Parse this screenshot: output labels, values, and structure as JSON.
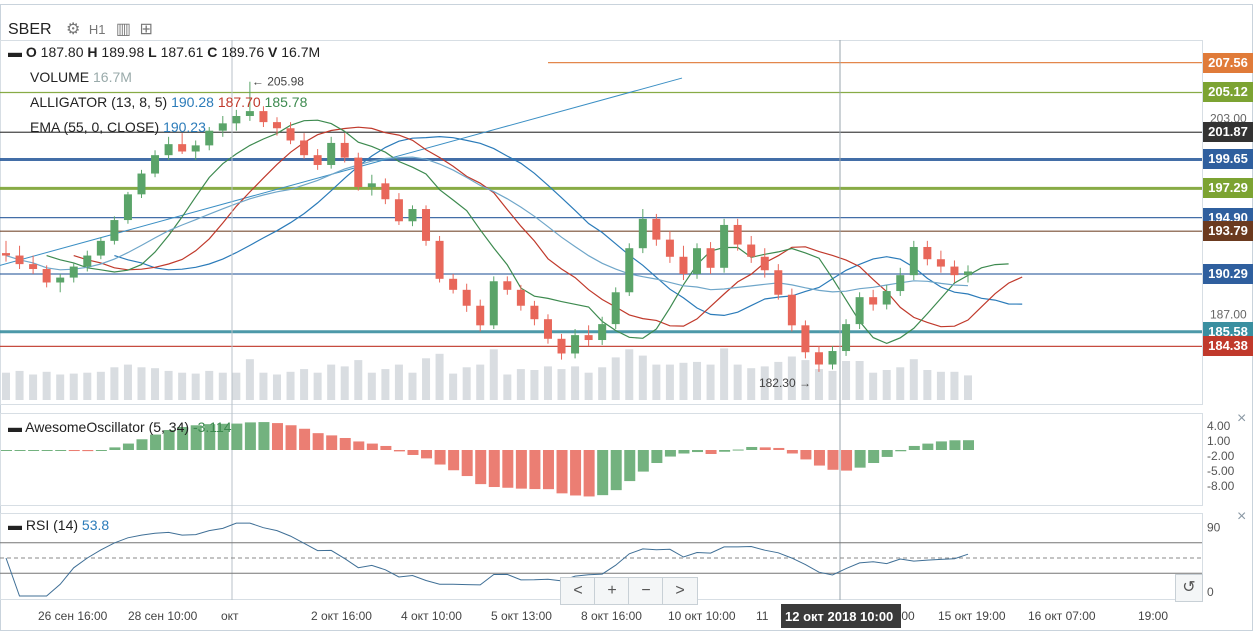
{
  "symbol": "SBER",
  "timeframe": "H1",
  "ohlc": {
    "o_label": "O",
    "o": "187.80",
    "h_label": "H",
    "h": "189.98",
    "l_label": "L",
    "l": "187.61",
    "c_label": "C",
    "c": "189.76",
    "v_label": "V",
    "v": "16.7M"
  },
  "indicators": {
    "volume": {
      "label": "VOLUME",
      "value": "16.7M"
    },
    "alligator": {
      "label": "ALLIGATOR (13, 8, 5)",
      "jaw": "190.28",
      "teeth": "187.70",
      "lips": "185.78"
    },
    "ema": {
      "label": "EMA (55, 0, CLOSE)",
      "value": "190.23"
    },
    "ao": {
      "label": "AwesomeOscillator (5, 34)",
      "value": "-3.114"
    },
    "rsi": {
      "label": "RSI (14)",
      "value": "53.8"
    }
  },
  "annotations": {
    "high_marker": "← 205.98",
    "low_marker": "182.30 →"
  },
  "price_tags": [
    {
      "value": "207.56",
      "color": "#e07b39"
    },
    {
      "value": "205.12",
      "color": "#7ca332"
    },
    {
      "value": "201.87",
      "color": "#333333"
    },
    {
      "value": "199.65",
      "color": "#2f5f9e"
    },
    {
      "value": "197.29",
      "color": "#7ca332"
    },
    {
      "value": "194.90",
      "color": "#2f5f9e"
    },
    {
      "value": "193.79",
      "color": "#6b3a1f"
    },
    {
      "value": "190.29",
      "color": "#2f5f9e"
    },
    {
      "value": "185.58",
      "color": "#3a8fa0"
    },
    {
      "value": "184.38",
      "color": "#c0392b"
    }
  ],
  "price_axis_ticks": [
    "203.00",
    "187.00"
  ],
  "ao_axis_ticks": [
    "4.00",
    "1.00",
    "-2.00",
    "-5.00",
    "-8.00"
  ],
  "rsi_axis_ticks": [
    "90",
    "0"
  ],
  "x_axis_ticks": [
    "26 сен 16:00",
    "28 сен 10:00",
    "окт",
    "2 окт 16:00",
    "4 окт 10:00",
    "5 окт 13:00",
    "8 окт 16:00",
    "10 окт 10:00",
    "11",
    ":00",
    "15 окт 19:00",
    "16 окт 07:00",
    "19:00"
  ],
  "crosshair_label": "12 окт 2018 10:00",
  "controls": {
    "prev": "<",
    "zoom_in": "+",
    "zoom_out": "−",
    "next": ">",
    "reset": "↺",
    "close": "×"
  },
  "colors": {
    "up": "#5aa469",
    "down": "#e8675a",
    "jaw": "#2b7bb9",
    "teeth": "#c0392b",
    "lips": "#3d8a4f"
  },
  "chart_data": {
    "type": "candlestick",
    "title": "",
    "y_range": [
      180,
      209
    ],
    "rsi_levels": [
      70,
      30
    ],
    "candles": [
      [
        192.0,
        193.0,
        191.3,
        191.8
      ],
      [
        191.8,
        192.6,
        190.7,
        191.1
      ],
      [
        191.1,
        191.8,
        190.3,
        190.7
      ],
      [
        190.7,
        191.0,
        189.2,
        189.6
      ],
      [
        189.6,
        190.3,
        188.8,
        190.0
      ],
      [
        190.0,
        191.2,
        189.6,
        190.9
      ],
      [
        190.9,
        192.2,
        190.5,
        191.8
      ],
      [
        191.8,
        193.3,
        191.5,
        193.0
      ],
      [
        193.0,
        195.0,
        192.7,
        194.7
      ],
      [
        194.7,
        197.0,
        194.4,
        196.8
      ],
      [
        196.8,
        198.8,
        196.5,
        198.5
      ],
      [
        198.5,
        200.4,
        198.2,
        200.0
      ],
      [
        200.0,
        201.5,
        199.6,
        200.9
      ],
      [
        200.9,
        201.8,
        200.1,
        200.3
      ],
      [
        200.3,
        201.2,
        199.6,
        200.8
      ],
      [
        200.8,
        202.3,
        200.4,
        202.0
      ],
      [
        202.0,
        203.2,
        201.5,
        202.6
      ],
      [
        202.6,
        203.7,
        202.0,
        203.2
      ],
      [
        203.2,
        206.0,
        202.8,
        203.6
      ],
      [
        203.6,
        204.0,
        202.3,
        202.7
      ],
      [
        202.7,
        203.1,
        201.6,
        202.2
      ],
      [
        202.2,
        202.7,
        200.9,
        201.2
      ],
      [
        201.2,
        201.8,
        199.7,
        200.0
      ],
      [
        200.0,
        200.5,
        198.8,
        199.2
      ],
      [
        199.2,
        201.5,
        198.9,
        201.0
      ],
      [
        201.0,
        201.8,
        199.4,
        199.8
      ],
      [
        199.8,
        200.2,
        197.1,
        197.4
      ],
      [
        197.4,
        198.4,
        196.7,
        197.7
      ],
      [
        197.7,
        198.1,
        196.0,
        196.4
      ],
      [
        196.4,
        196.9,
        194.3,
        194.6
      ],
      [
        194.6,
        195.9,
        194.2,
        195.6
      ],
      [
        195.6,
        195.9,
        192.6,
        193.0
      ],
      [
        193.0,
        193.4,
        189.6,
        189.9
      ],
      [
        189.9,
        190.3,
        188.7,
        189.0
      ],
      [
        189.0,
        189.5,
        187.2,
        187.7
      ],
      [
        187.7,
        188.2,
        185.6,
        186.1
      ],
      [
        186.1,
        190.1,
        185.8,
        189.7
      ],
      [
        189.7,
        190.1,
        188.6,
        189.0
      ],
      [
        189.0,
        189.4,
        187.3,
        187.7
      ],
      [
        187.7,
        188.1,
        186.1,
        186.6
      ],
      [
        186.6,
        187.0,
        184.6,
        185.0
      ],
      [
        185.0,
        185.4,
        183.3,
        183.8
      ],
      [
        183.8,
        185.8,
        183.4,
        185.3
      ],
      [
        185.3,
        186.1,
        184.4,
        184.9
      ],
      [
        184.9,
        186.8,
        184.5,
        186.2
      ],
      [
        186.2,
        189.2,
        185.8,
        188.8
      ],
      [
        188.8,
        192.8,
        188.5,
        192.4
      ],
      [
        192.4,
        195.6,
        192.0,
        194.8
      ],
      [
        194.8,
        195.2,
        192.6,
        193.1
      ],
      [
        193.1,
        193.8,
        191.2,
        191.7
      ],
      [
        191.7,
        192.6,
        189.8,
        190.3
      ],
      [
        190.3,
        192.8,
        189.9,
        192.4
      ],
      [
        192.4,
        192.9,
        190.3,
        190.8
      ],
      [
        190.8,
        194.8,
        190.4,
        194.3
      ],
      [
        194.3,
        194.8,
        192.2,
        192.7
      ],
      [
        192.7,
        193.4,
        191.2,
        191.7
      ],
      [
        191.7,
        192.4,
        190.0,
        190.6
      ],
      [
        190.6,
        191.1,
        188.2,
        188.6
      ],
      [
        188.6,
        189.1,
        185.6,
        186.1
      ],
      [
        186.1,
        186.5,
        183.4,
        183.9
      ],
      [
        183.9,
        184.4,
        182.3,
        182.9
      ],
      [
        182.9,
        184.4,
        182.5,
        184.0
      ],
      [
        184.0,
        186.6,
        183.6,
        186.2
      ],
      [
        186.2,
        188.8,
        185.8,
        188.4
      ],
      [
        188.4,
        189.0,
        187.3,
        187.8
      ],
      [
        187.8,
        189.4,
        187.4,
        188.9
      ],
      [
        188.9,
        190.8,
        188.5,
        190.2
      ],
      [
        190.2,
        193.0,
        189.8,
        192.5
      ],
      [
        192.5,
        193.0,
        191.0,
        191.5
      ],
      [
        191.5,
        192.2,
        190.4,
        190.9
      ],
      [
        190.9,
        191.4,
        189.6,
        190.2
      ],
      [
        190.2,
        191.0,
        189.6,
        190.5
      ]
    ],
    "alligator": {
      "jaw": 190.28,
      "teeth": 187.7,
      "lips": 185.78
    },
    "ema": 190.23,
    "last_rsi": 53.8,
    "last_ao": -3.114
  }
}
